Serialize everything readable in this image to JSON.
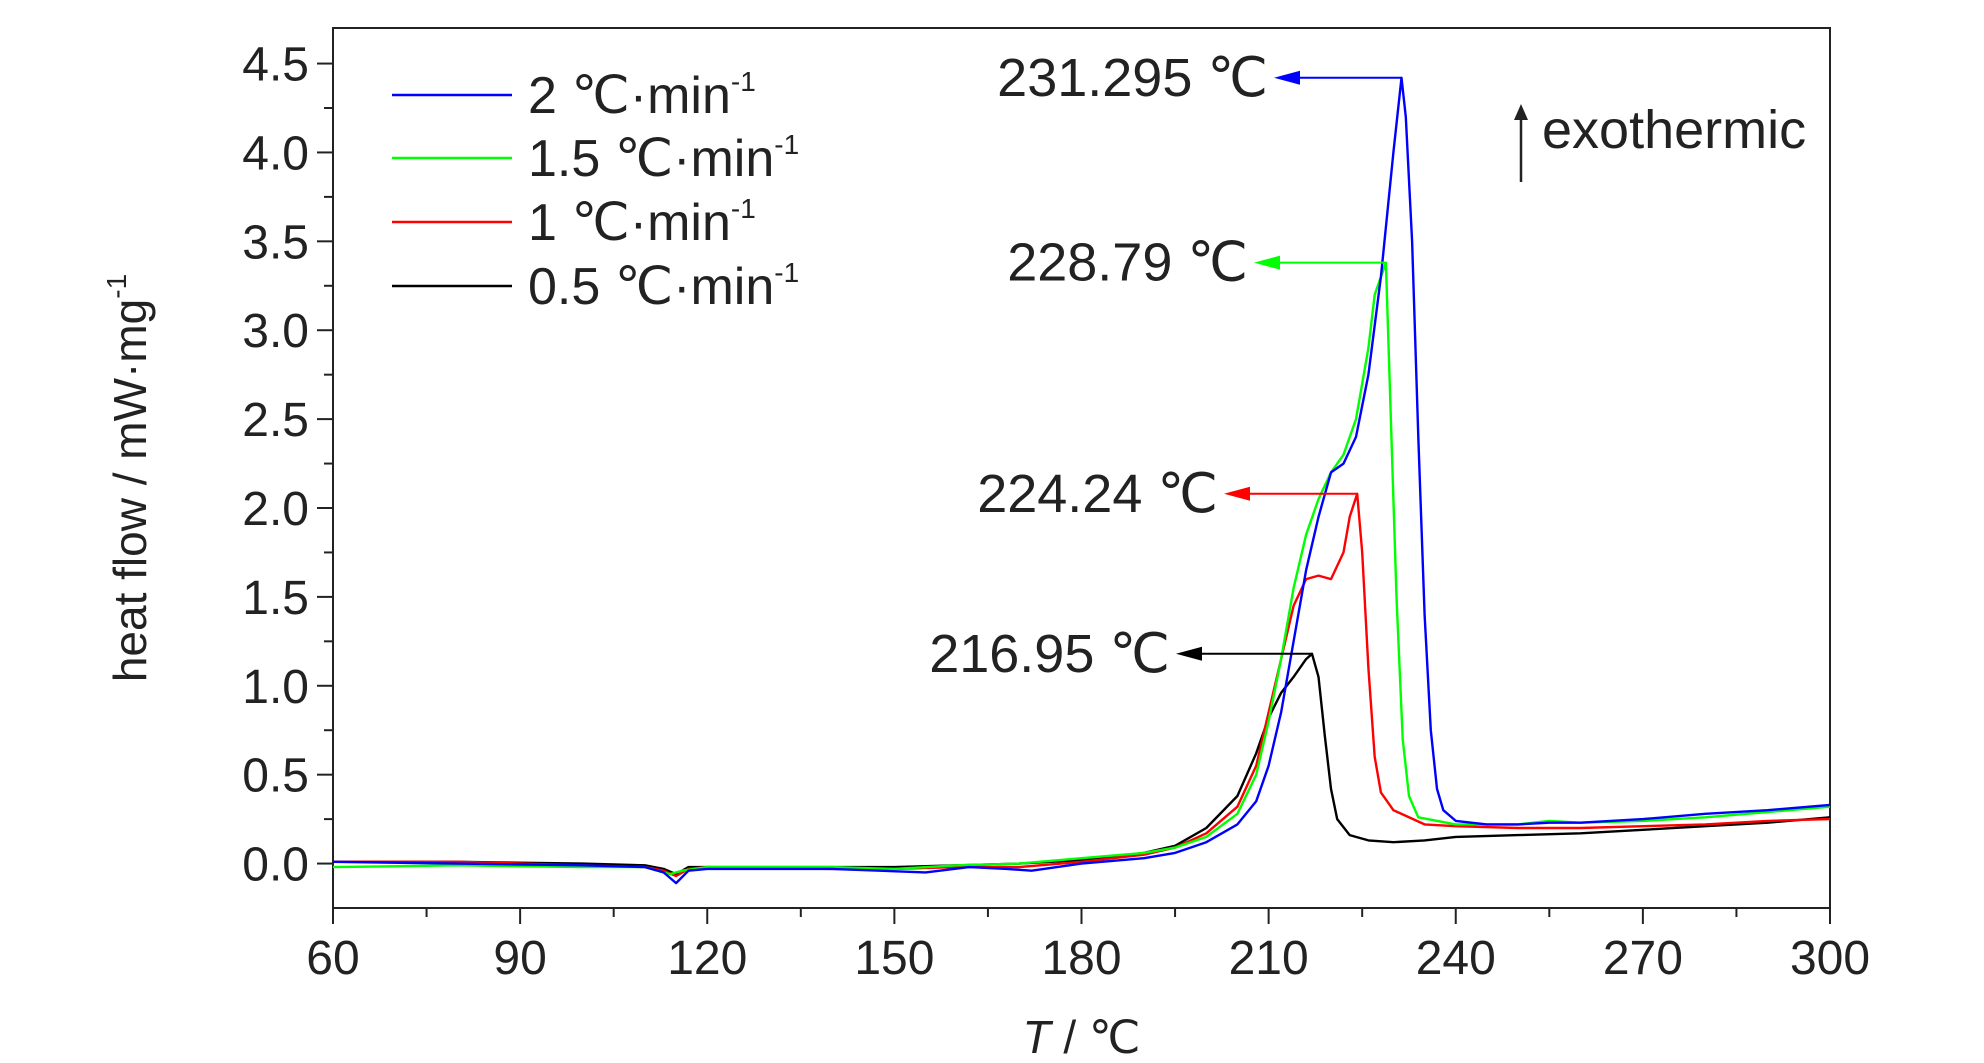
{
  "chart_data": {
    "type": "line",
    "title": "",
    "xlabel": {
      "italic": "T",
      "rest": " / ℃"
    },
    "ylabel": {
      "main": "heat flow / mW·mg",
      "sup": "-1"
    },
    "xlim": [
      60,
      300
    ],
    "ylim": [
      -0.25,
      4.7
    ],
    "xticks": [
      60,
      90,
      120,
      150,
      180,
      210,
      240,
      270,
      300
    ],
    "xtick_labels": [
      "60",
      "90",
      "120",
      "150",
      "180",
      "210",
      "240",
      "270",
      "300"
    ],
    "yticks": [
      0.0,
      0.5,
      1.0,
      1.5,
      2.0,
      2.5,
      3.0,
      3.5,
      4.0,
      4.5
    ],
    "ytick_labels": [
      "0.0",
      "0.5",
      "1.0",
      "1.5",
      "2.0",
      "2.5",
      "3.0",
      "3.5",
      "4.0",
      "4.5"
    ],
    "grid": false,
    "legend_position": "top-left",
    "series": [
      {
        "name": "2 ℃·min",
        "name_sup": "-1",
        "color": "#0000ff",
        "points": [
          [
            60,
            0.01
          ],
          [
            80,
            0.0
          ],
          [
            100,
            -0.01
          ],
          [
            110,
            -0.02
          ],
          [
            113,
            -0.05
          ],
          [
            115,
            -0.11
          ],
          [
            117,
            -0.04
          ],
          [
            120,
            -0.03
          ],
          [
            140,
            -0.03
          ],
          [
            155,
            -0.05
          ],
          [
            162,
            -0.02
          ],
          [
            168,
            -0.03
          ],
          [
            172,
            -0.04
          ],
          [
            180,
            0.0
          ],
          [
            190,
            0.03
          ],
          [
            195,
            0.06
          ],
          [
            200,
            0.12
          ],
          [
            205,
            0.22
          ],
          [
            208,
            0.35
          ],
          [
            210,
            0.55
          ],
          [
            212,
            0.85
          ],
          [
            214,
            1.25
          ],
          [
            216,
            1.65
          ],
          [
            218,
            1.95
          ],
          [
            220,
            2.2
          ],
          [
            222,
            2.25
          ],
          [
            224,
            2.4
          ],
          [
            226,
            2.75
          ],
          [
            228,
            3.3
          ],
          [
            230,
            4.0
          ],
          [
            231.3,
            4.42
          ],
          [
            232,
            4.2
          ],
          [
            233,
            3.5
          ],
          [
            234,
            2.4
          ],
          [
            235,
            1.4
          ],
          [
            236,
            0.75
          ],
          [
            237,
            0.42
          ],
          [
            238,
            0.3
          ],
          [
            240,
            0.24
          ],
          [
            245,
            0.22
          ],
          [
            250,
            0.22
          ],
          [
            255,
            0.23
          ],
          [
            260,
            0.23
          ],
          [
            270,
            0.25
          ],
          [
            280,
            0.28
          ],
          [
            290,
            0.3
          ],
          [
            300,
            0.33
          ]
        ]
      },
      {
        "name": "1.5 ℃·min",
        "name_sup": "-1",
        "color": "#00ff00",
        "points": [
          [
            60,
            -0.02
          ],
          [
            80,
            -0.01
          ],
          [
            100,
            -0.02
          ],
          [
            110,
            -0.02
          ],
          [
            114,
            -0.06
          ],
          [
            116,
            -0.04
          ],
          [
            120,
            -0.02
          ],
          [
            140,
            -0.02
          ],
          [
            150,
            -0.03
          ],
          [
            160,
            -0.01
          ],
          [
            170,
            0.0
          ],
          [
            180,
            0.03
          ],
          [
            190,
            0.06
          ],
          [
            195,
            0.09
          ],
          [
            200,
            0.15
          ],
          [
            205,
            0.28
          ],
          [
            208,
            0.5
          ],
          [
            210,
            0.8
          ],
          [
            212,
            1.15
          ],
          [
            214,
            1.55
          ],
          [
            216,
            1.85
          ],
          [
            218,
            2.05
          ],
          [
            220,
            2.2
          ],
          [
            222,
            2.3
          ],
          [
            224,
            2.5
          ],
          [
            226,
            2.9
          ],
          [
            227,
            3.2
          ],
          [
            228.8,
            3.38
          ],
          [
            229.5,
            2.6
          ],
          [
            230.5,
            1.5
          ],
          [
            231.5,
            0.7
          ],
          [
            232.5,
            0.38
          ],
          [
            234,
            0.26
          ],
          [
            240,
            0.22
          ],
          [
            250,
            0.22
          ],
          [
            255,
            0.24
          ],
          [
            260,
            0.23
          ],
          [
            270,
            0.24
          ],
          [
            280,
            0.26
          ],
          [
            290,
            0.29
          ],
          [
            300,
            0.32
          ]
        ]
      },
      {
        "name": "1 ℃·min",
        "name_sup": "-1",
        "color": "#ff0000",
        "points": [
          [
            60,
            0.01
          ],
          [
            80,
            0.01
          ],
          [
            100,
            -0.01
          ],
          [
            110,
            -0.02
          ],
          [
            113,
            -0.04
          ],
          [
            115,
            -0.07
          ],
          [
            117,
            -0.03
          ],
          [
            120,
            -0.02
          ],
          [
            140,
            -0.03
          ],
          [
            150,
            -0.03
          ],
          [
            160,
            -0.02
          ],
          [
            170,
            -0.02
          ],
          [
            180,
            0.01
          ],
          [
            190,
            0.05
          ],
          [
            195,
            0.09
          ],
          [
            200,
            0.17
          ],
          [
            205,
            0.32
          ],
          [
            208,
            0.55
          ],
          [
            210,
            0.85
          ],
          [
            212,
            1.15
          ],
          [
            214,
            1.45
          ],
          [
            216,
            1.6
          ],
          [
            218,
            1.62
          ],
          [
            220,
            1.6
          ],
          [
            222,
            1.75
          ],
          [
            223,
            1.95
          ],
          [
            224.2,
            2.08
          ],
          [
            225,
            1.75
          ],
          [
            226,
            1.1
          ],
          [
            227,
            0.6
          ],
          [
            228,
            0.4
          ],
          [
            230,
            0.3
          ],
          [
            235,
            0.22
          ],
          [
            240,
            0.21
          ],
          [
            250,
            0.2
          ],
          [
            260,
            0.2
          ],
          [
            270,
            0.21
          ],
          [
            280,
            0.22
          ],
          [
            290,
            0.24
          ],
          [
            300,
            0.25
          ]
        ]
      },
      {
        "name": "0.5 ℃·min",
        "name_sup": "-1",
        "color": "#000000",
        "points": [
          [
            60,
            0.01
          ],
          [
            80,
            0.01
          ],
          [
            100,
            0.0
          ],
          [
            110,
            -0.01
          ],
          [
            113,
            -0.03
          ],
          [
            115,
            -0.06
          ],
          [
            117,
            -0.02
          ],
          [
            120,
            -0.02
          ],
          [
            140,
            -0.02
          ],
          [
            150,
            -0.02
          ],
          [
            160,
            -0.01
          ],
          [
            170,
            0.0
          ],
          [
            180,
            0.02
          ],
          [
            190,
            0.06
          ],
          [
            195,
            0.1
          ],
          [
            200,
            0.2
          ],
          [
            205,
            0.38
          ],
          [
            208,
            0.62
          ],
          [
            210,
            0.82
          ],
          [
            212,
            0.96
          ],
          [
            214,
            1.05
          ],
          [
            216,
            1.15
          ],
          [
            216.95,
            1.18
          ],
          [
            218,
            1.05
          ],
          [
            219,
            0.72
          ],
          [
            220,
            0.42
          ],
          [
            221,
            0.25
          ],
          [
            223,
            0.16
          ],
          [
            226,
            0.13
          ],
          [
            230,
            0.12
          ],
          [
            235,
            0.13
          ],
          [
            240,
            0.15
          ],
          [
            250,
            0.16
          ],
          [
            260,
            0.17
          ],
          [
            270,
            0.19
          ],
          [
            280,
            0.21
          ],
          [
            290,
            0.23
          ],
          [
            300,
            0.26
          ]
        ]
      }
    ],
    "annotations": [
      {
        "text": "231.295 ℃",
        "color": "#0000ff",
        "peak": [
          231.3,
          4.42
        ]
      },
      {
        "text": "228.79 ℃",
        "color": "#00ff00",
        "peak": [
          228.8,
          3.38
        ]
      },
      {
        "text": "224.24 ℃",
        "color": "#ff0000",
        "peak": [
          224.2,
          2.08
        ]
      },
      {
        "text": "216.95 ℃",
        "color": "#000000",
        "peak": [
          216.95,
          1.18
        ]
      }
    ],
    "direction_note": {
      "text": "exothermic",
      "arrow": "up"
    }
  }
}
